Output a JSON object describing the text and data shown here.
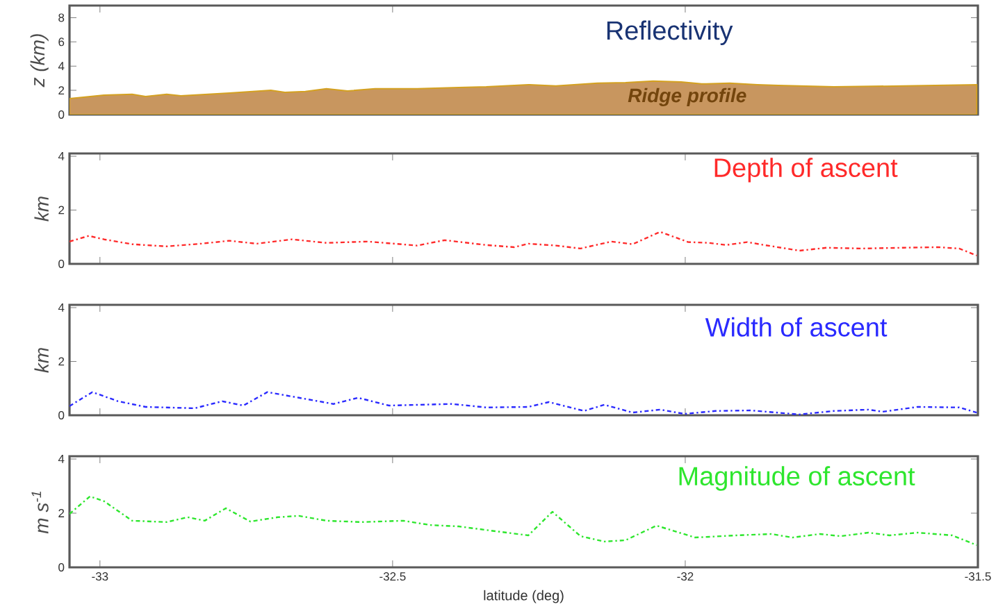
{
  "chart_data": [
    {
      "type": "area",
      "ylabel": "z (km)",
      "annotations": [
        "Reflectivity",
        "Ridge profile"
      ],
      "color": "#c8965f",
      "line_style": "solid",
      "marker": "none",
      "tick_labels": "y",
      "x": [
        -33.052,
        -32.993,
        -32.945,
        -32.922,
        -32.886,
        -32.862,
        -32.779,
        -32.708,
        -32.684,
        -32.649,
        -32.613,
        -32.577,
        -32.53,
        -32.458,
        -32.387,
        -32.34,
        -32.268,
        -32.221,
        -32.15,
        -32.102,
        -32.055,
        -32.007,
        -31.972,
        -31.924,
        -31.877,
        -31.841,
        -31.746,
        -31.627,
        -31.502
      ],
      "values": [
        1.32,
        1.61,
        1.67,
        1.49,
        1.67,
        1.55,
        1.78,
        2.01,
        1.84,
        1.9,
        2.13,
        1.95,
        2.13,
        2.13,
        2.24,
        2.3,
        2.47,
        2.36,
        2.59,
        2.64,
        2.76,
        2.7,
        2.53,
        2.59,
        2.47,
        2.41,
        2.3,
        2.36,
        2.47
      ],
      "xlim": [
        -33.052,
        -31.5
      ],
      "ylim": [
        0,
        9
      ],
      "xticks": [
        -33,
        -32.5,
        -32,
        -31.5
      ],
      "yticks": [
        0,
        2,
        4,
        6,
        8
      ]
    },
    {
      "type": "line",
      "ylabel": "km",
      "annotations": [
        "Depth of ascent"
      ],
      "color": "#ff2a2a",
      "line_style": "dashed",
      "marker": "none",
      "tick_labels": "y",
      "x": [
        -33.052,
        -33.019,
        -32.993,
        -32.945,
        -32.886,
        -32.827,
        -32.779,
        -32.732,
        -32.672,
        -32.613,
        -32.542,
        -32.458,
        -32.411,
        -32.34,
        -32.292,
        -32.268,
        -32.221,
        -32.179,
        -32.126,
        -32.09,
        -32.043,
        -31.995,
        -31.96,
        -31.93,
        -31.894,
        -31.865,
        -31.805,
        -31.758,
        -31.698,
        -31.627,
        -31.568,
        -31.532,
        -31.502
      ],
      "values": [
        0.83,
        1.04,
        0.91,
        0.73,
        0.65,
        0.75,
        0.86,
        0.75,
        0.91,
        0.78,
        0.83,
        0.68,
        0.88,
        0.7,
        0.62,
        0.75,
        0.68,
        0.57,
        0.83,
        0.73,
        1.19,
        0.81,
        0.78,
        0.7,
        0.81,
        0.7,
        0.49,
        0.6,
        0.57,
        0.6,
        0.62,
        0.57,
        0.31
      ],
      "xlim": [
        -33.052,
        -31.5
      ],
      "ylim": [
        0,
        4.1
      ],
      "xticks": [
        -33,
        -32.5,
        -32,
        -31.5
      ],
      "yticks": [
        0,
        2,
        4
      ]
    },
    {
      "type": "line",
      "ylabel": "km",
      "annotations": [
        "Width of ascent"
      ],
      "color": "#2a2aff",
      "line_style": "dashed",
      "marker": "none",
      "tick_labels": "y",
      "x": [
        -33.052,
        -33.013,
        -32.969,
        -32.922,
        -32.838,
        -32.791,
        -32.755,
        -32.714,
        -32.66,
        -32.601,
        -32.559,
        -32.506,
        -32.399,
        -32.34,
        -32.268,
        -32.233,
        -32.173,
        -32.138,
        -32.09,
        -32.043,
        -32.001,
        -31.948,
        -31.888,
        -31.805,
        -31.746,
        -31.687,
        -31.663,
        -31.603,
        -31.532,
        -31.502
      ],
      "values": [
        0.34,
        0.86,
        0.52,
        0.31,
        0.26,
        0.52,
        0.36,
        0.86,
        0.65,
        0.42,
        0.65,
        0.36,
        0.42,
        0.29,
        0.31,
        0.49,
        0.16,
        0.39,
        0.1,
        0.21,
        0.05,
        0.16,
        0.18,
        0.03,
        0.16,
        0.21,
        0.13,
        0.31,
        0.29,
        0.1
      ],
      "xlim": [
        -33.052,
        -31.5
      ],
      "ylim": [
        0,
        4.1
      ],
      "xticks": [
        -33,
        -32.5,
        -32,
        -31.5
      ],
      "yticks": [
        0,
        2,
        4
      ]
    },
    {
      "type": "line",
      "xlabel": "latitude (deg)",
      "ylabel": "m s$^{-1}$",
      "annotations": [
        "Magnitude of ascent"
      ],
      "color": "#2ee62e",
      "line_style": "dashed",
      "marker": "none",
      "x": [
        -33.052,
        -33.017,
        -32.993,
        -32.945,
        -32.886,
        -32.85,
        -32.821,
        -32.785,
        -32.743,
        -32.696,
        -32.66,
        -32.613,
        -32.553,
        -32.482,
        -32.435,
        -32.387,
        -32.316,
        -32.268,
        -32.227,
        -32.179,
        -32.138,
        -32.102,
        -32.049,
        -31.983,
        -31.912,
        -31.853,
        -31.817,
        -31.77,
        -31.734,
        -31.687,
        -31.651,
        -31.603,
        -31.544,
        -31.502
      ],
      "values": [
        1.97,
        2.62,
        2.44,
        1.72,
        1.67,
        1.85,
        1.72,
        2.18,
        1.69,
        1.85,
        1.9,
        1.72,
        1.67,
        1.72,
        1.56,
        1.51,
        1.31,
        1.18,
        2.05,
        1.15,
        0.95,
        1.0,
        1.54,
        1.1,
        1.18,
        1.23,
        1.1,
        1.23,
        1.15,
        1.28,
        1.18,
        1.28,
        1.18,
        0.82
      ],
      "xlim": [
        -33.052,
        -31.5
      ],
      "ylim": [
        0,
        4.1
      ],
      "xticks": [
        -33,
        -32.5,
        -32,
        -31.5
      ],
      "yticks": [
        0,
        2,
        4
      ]
    }
  ]
}
